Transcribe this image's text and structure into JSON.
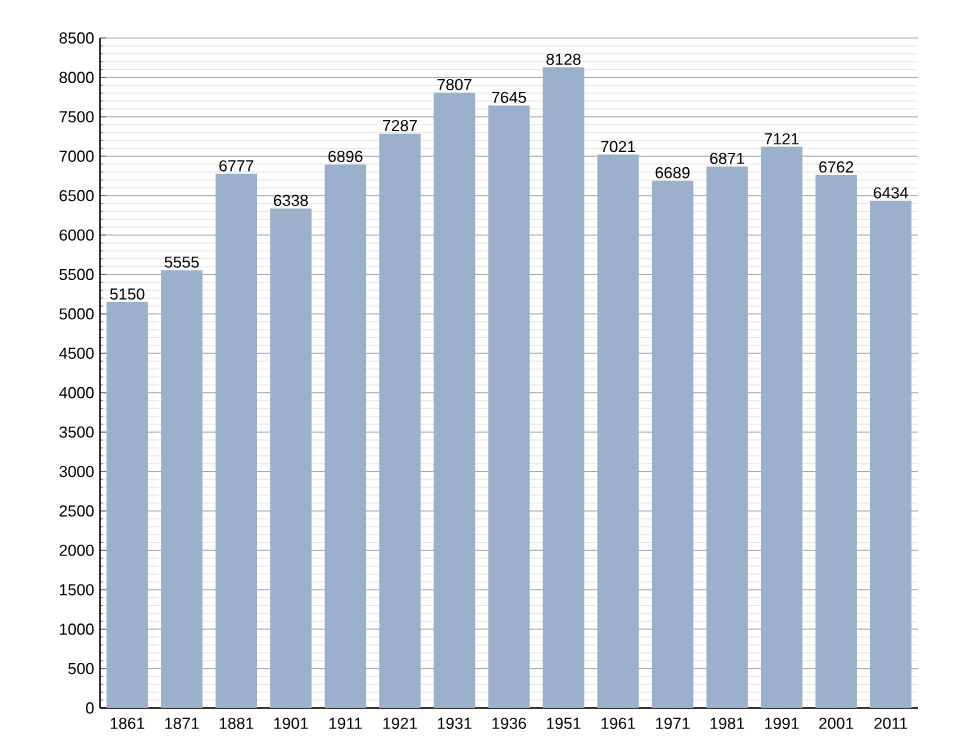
{
  "chart_data": {
    "type": "bar",
    "categories": [
      "1861",
      "1871",
      "1881",
      "1901",
      "1911",
      "1921",
      "1931",
      "1936",
      "1951",
      "1961",
      "1971",
      "1981",
      "1991",
      "2001",
      "2011"
    ],
    "values": [
      5150,
      5555,
      6777,
      6338,
      6896,
      7287,
      7807,
      7645,
      8128,
      7021,
      6689,
      6871,
      7121,
      6762,
      6434
    ],
    "color": "#9bb0cb",
    "ylim": [
      0,
      8500
    ],
    "yticks": [
      0,
      500,
      1000,
      1500,
      2000,
      2500,
      3000,
      3500,
      4000,
      4500,
      5000,
      5500,
      6000,
      6500,
      7000,
      7500,
      8000,
      8500
    ],
    "grid": "y",
    "data_labels": true
  }
}
